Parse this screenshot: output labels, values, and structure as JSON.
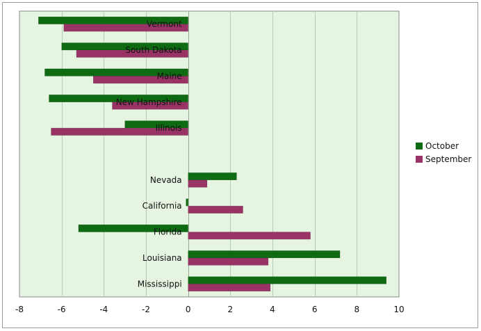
{
  "chart_data": {
    "type": "bar",
    "orientation": "horizontal",
    "title": "",
    "xlabel": "",
    "ylabel": "",
    "categories": [
      "Vermont",
      "South Dakota",
      "Maine",
      "New Hampshire",
      "Illinois",
      "",
      "Nevada",
      "California",
      "Florida",
      "Louisiana",
      "Mississippi"
    ],
    "series": [
      {
        "name": "October",
        "color": "#0f6b12",
        "values": [
          -7.1,
          -6.0,
          -6.8,
          -6.6,
          -3.0,
          null,
          2.3,
          -0.1,
          -5.2,
          7.2,
          9.4
        ]
      },
      {
        "name": "September",
        "color": "#993366",
        "values": [
          -5.9,
          -5.3,
          -4.5,
          -3.6,
          -6.5,
          null,
          0.9,
          2.6,
          5.8,
          3.8,
          3.9
        ]
      }
    ],
    "xlim": [
      -8,
      10
    ],
    "xticks": [
      -8,
      -6,
      -4,
      -2,
      0,
      2,
      4,
      6,
      8,
      10
    ],
    "grid": true,
    "legend_position": "right",
    "plot_background": "#e6f5e2",
    "gridline_color": "#b8ccb4"
  }
}
